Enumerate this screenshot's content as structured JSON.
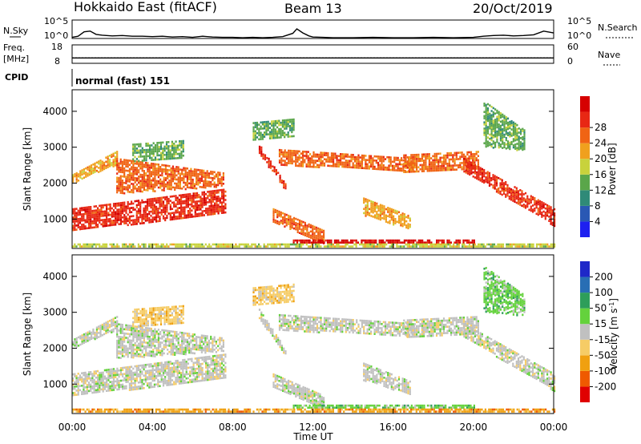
{
  "header": {
    "title_left": "Hokkaido East (fitACF)",
    "title_mid": "Beam 13",
    "title_right": "20/Oct/2019"
  },
  "colors": {
    "frame": "#000000",
    "power_scale": [
      "#1e20f0",
      "#2a58b4",
      "#2f8a78",
      "#5aa64a",
      "#c8d23c",
      "#f0a01e",
      "#f06414",
      "#e82814",
      "#d60000"
    ],
    "velocity_scale": [
      "#e00000",
      "#ef5a00",
      "#f0a010",
      "#f6cc66",
      "#c0c0c0",
      "#64d23c",
      "#2e9e5a",
      "#286eb4",
      "#1e28c8"
    ],
    "ground_scatter": "#bdbdbd"
  },
  "chart_data": [
    {
      "type": "line",
      "name": "noise",
      "left_label": "N.Sky",
      "left_ticks": [
        "10^5",
        "10^0"
      ],
      "right_label": "N.Search",
      "right_ticks": [
        "10^5",
        "10^0"
      ],
      "x_hours": [
        0,
        0.3,
        0.6,
        0.9,
        1.2,
        1.5,
        2,
        2.5,
        3,
        3.5,
        4,
        4.5,
        5,
        5.5,
        6,
        6.5,
        7,
        7.5,
        8,
        8.5,
        9,
        9.5,
        10,
        10.5,
        11,
        11.2,
        11.5,
        11.8,
        12,
        12.5,
        13,
        14,
        15,
        16,
        17,
        18,
        19,
        20,
        20.5,
        21,
        21.5,
        22,
        22.5,
        23,
        23.5,
        24
      ],
      "y_log": [
        0.3,
        0.6,
        1.8,
        2.0,
        1.1,
        0.9,
        0.7,
        0.8,
        0.6,
        0.6,
        0.5,
        0.6,
        0.4,
        0.5,
        0.3,
        0.6,
        0.4,
        0.3,
        0.3,
        0.2,
        0.3,
        0.2,
        0.3,
        0.5,
        1.4,
        2.6,
        1.5,
        0.7,
        0.4,
        0.3,
        0.2,
        0.2,
        0.3,
        0.2,
        0.2,
        0.3,
        0.2,
        0.3,
        0.6,
        0.8,
        0.9,
        0.7,
        0.8,
        1.0,
        2.0,
        1.5
      ]
    },
    {
      "type": "line",
      "name": "frequency",
      "left_label": "Freq.",
      "left_unit": "[MHz]",
      "left_ticks": [
        "18",
        "8"
      ],
      "right_label": "Nave",
      "right_ticks": [
        "60",
        "0"
      ],
      "freq_mhz": 10.9,
      "nave_series_style": "dotted",
      "nave_value": 18
    },
    {
      "type": "table",
      "name": "cpid",
      "label": "CPID",
      "text": "normal (fast) 151"
    },
    {
      "type": "heatmap",
      "name": "power",
      "ylabel": "Slant Range [km]",
      "yticks": [
        1000,
        2000,
        3000,
        4000
      ],
      "ylim": [
        180,
        4600
      ],
      "xlim": [
        0,
        24
      ],
      "colorbar_label": "Power [dB]",
      "colorbar_ticks": [
        "4",
        "8",
        "12",
        "16",
        "20",
        "24",
        "28"
      ],
      "regions": [
        {
          "t": [
            0,
            7.6
          ],
          "r_lo_start": 650,
          "r_lo_end": 1150,
          "r_hi_start": 1300,
          "r_hi_end": 1850,
          "level": 7
        },
        {
          "t": [
            0,
            2.2
          ],
          "r_lo_start": 2000,
          "r_lo_end": 2500,
          "r_hi_start": 2250,
          "r_hi_end": 2900,
          "level": 5
        },
        {
          "t": [
            2.2,
            7.5
          ],
          "r_lo_start": 1700,
          "r_lo_end": 1900,
          "r_hi_start": 2700,
          "r_hi_end": 2300,
          "level": 6
        },
        {
          "t": [
            3.0,
            5.5
          ],
          "r_lo_start": 2600,
          "r_lo_end": 2700,
          "r_hi_start": 3100,
          "r_hi_end": 3200,
          "level": 3
        },
        {
          "t": [
            9.3,
            10.6
          ],
          "r_lo_start": 2800,
          "r_lo_end": 1800,
          "r_hi_start": 3100,
          "r_hi_end": 2000,
          "level": 7
        },
        {
          "t": [
            10.3,
            17.0
          ],
          "r_lo_start": 2500,
          "r_lo_end": 2300,
          "r_hi_start": 2950,
          "r_hi_end": 2700,
          "level": 6
        },
        {
          "t": [
            16.5,
            20.2
          ],
          "r_lo_start": 2300,
          "r_lo_end": 2400,
          "r_hi_start": 2800,
          "r_hi_end": 2900,
          "level": 6
        },
        {
          "t": [
            19.5,
            24.0
          ],
          "r_lo_start": 2300,
          "r_lo_end": 800,
          "r_hi_start": 2700,
          "r_hi_end": 1300,
          "level": 7
        },
        {
          "t": [
            10.0,
            12.5
          ],
          "r_lo_start": 900,
          "r_lo_end": 300,
          "r_hi_start": 1300,
          "r_hi_end": 700,
          "level": 6
        },
        {
          "t": [
            11.0,
            20.0
          ],
          "r_lo_start": 300,
          "r_lo_end": 300,
          "r_hi_start": 430,
          "r_hi_end": 430,
          "level": 8
        },
        {
          "t": [
            14.5,
            16.8
          ],
          "r_lo_start": 1100,
          "r_lo_end": 700,
          "r_hi_start": 1600,
          "r_hi_end": 1100,
          "level": 5
        },
        {
          "t": [
            20.5,
            22.5
          ],
          "r_lo_start": 3000,
          "r_lo_end": 2900,
          "r_hi_start": 4300,
          "r_hi_end": 3500,
          "level": 3
        },
        {
          "t": [
            9.0,
            11.0
          ],
          "r_lo_start": 3200,
          "r_lo_end": 3300,
          "r_hi_start": 3700,
          "r_hi_end": 3800,
          "level": 3
        },
        {
          "t": [
            0,
            24
          ],
          "r_lo_start": 180,
          "r_lo_end": 180,
          "r_hi_start": 320,
          "r_hi_end": 320,
          "level": 4
        }
      ]
    },
    {
      "type": "heatmap",
      "name": "velocity",
      "ylabel": "Slant Range [km]",
      "yticks": [
        1000,
        2000,
        3000,
        4000
      ],
      "ylim": [
        180,
        4600
      ],
      "xlim": [
        0,
        24
      ],
      "xticks": [
        "00:00",
        "04:00",
        "08:00",
        "12:00",
        "16:00",
        "20:00",
        "00:00"
      ],
      "xlabel": "Time UT",
      "colorbar_label": "Velocity [m s",
      "colorbar_label_sup": "-1",
      "colorbar_label_end": "]",
      "colorbar_ticks": [
        "-200",
        "-100",
        "-50",
        "-15",
        "15",
        "50",
        "100",
        "200"
      ],
      "regions": [
        {
          "t": [
            0,
            7.6
          ],
          "r_lo_start": 650,
          "r_lo_end": 1150,
          "r_hi_start": 1300,
          "r_hi_end": 1850,
          "level": 4
        },
        {
          "t": [
            0,
            2.2
          ],
          "r_lo_start": 2000,
          "r_lo_end": 2500,
          "r_hi_start": 2250,
          "r_hi_end": 2900,
          "level": 4
        },
        {
          "t": [
            2.2,
            7.5
          ],
          "r_lo_start": 1700,
          "r_lo_end": 1900,
          "r_hi_start": 2700,
          "r_hi_end": 2300,
          "level": 4
        },
        {
          "t": [
            3.0,
            5.5
          ],
          "r_lo_start": 2600,
          "r_lo_end": 2700,
          "r_hi_start": 3100,
          "r_hi_end": 3200,
          "level": 3
        },
        {
          "t": [
            9.3,
            10.6
          ],
          "r_lo_start": 2800,
          "r_lo_end": 1800,
          "r_hi_start": 3100,
          "r_hi_end": 2000,
          "level": 4
        },
        {
          "t": [
            10.3,
            17.0
          ],
          "r_lo_start": 2500,
          "r_lo_end": 2300,
          "r_hi_start": 2950,
          "r_hi_end": 2700,
          "level": 4
        },
        {
          "t": [
            16.5,
            20.2
          ],
          "r_lo_start": 2300,
          "r_lo_end": 2400,
          "r_hi_start": 2800,
          "r_hi_end": 2900,
          "level": 4
        },
        {
          "t": [
            19.5,
            24.0
          ],
          "r_lo_start": 2300,
          "r_lo_end": 800,
          "r_hi_start": 2700,
          "r_hi_end": 1300,
          "level": 4
        },
        {
          "t": [
            10.0,
            12.5
          ],
          "r_lo_start": 900,
          "r_lo_end": 300,
          "r_hi_start": 1300,
          "r_hi_end": 700,
          "level": 4
        },
        {
          "t": [
            11.0,
            20.0
          ],
          "r_lo_start": 300,
          "r_lo_end": 300,
          "r_hi_start": 430,
          "r_hi_end": 430,
          "level": 5
        },
        {
          "t": [
            14.5,
            16.8
          ],
          "r_lo_start": 1100,
          "r_lo_end": 700,
          "r_hi_start": 1600,
          "r_hi_end": 1100,
          "level": 4
        },
        {
          "t": [
            20.5,
            22.5
          ],
          "r_lo_start": 3000,
          "r_lo_end": 2900,
          "r_hi_start": 4300,
          "r_hi_end": 3500,
          "level": 5
        },
        {
          "t": [
            9.0,
            11.0
          ],
          "r_lo_start": 3200,
          "r_lo_end": 3300,
          "r_hi_start": 3700,
          "r_hi_end": 3800,
          "level": 3
        },
        {
          "t": [
            0,
            24
          ],
          "r_lo_start": 180,
          "r_lo_end": 180,
          "r_hi_start": 320,
          "r_hi_end": 320,
          "level": 2
        }
      ]
    }
  ]
}
